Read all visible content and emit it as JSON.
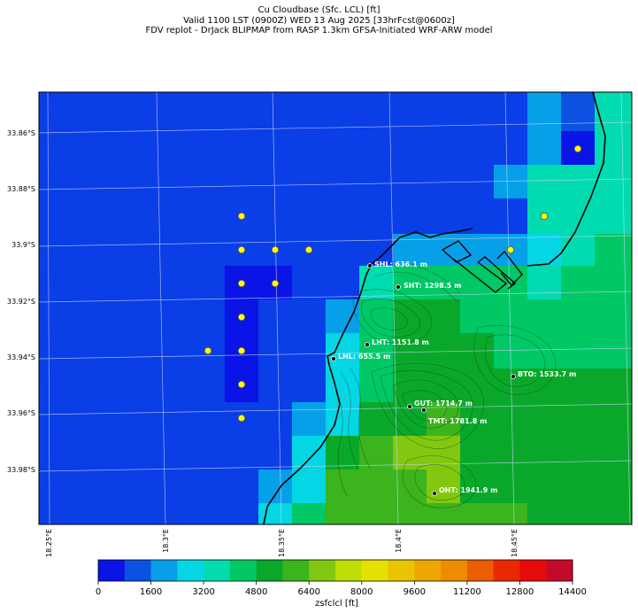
{
  "title": {
    "line1": "Cu Cloudbase (Sfc. LCL) [ft]",
    "line2": "Valid 1100 LST (0900Z) WED 13 Aug 2025 [33hrFcst@0600z]",
    "line3": "FDV replot - DrJack BLIPMAP from RASP 1.3km GFSA-Initiated WRF-ARW model"
  },
  "lat_labels": [
    "33.86°S",
    "33.88°S",
    "33.9°S",
    "33.92°S",
    "33.94°S",
    "33.96°S",
    "33.98°S"
  ],
  "lon_labels": [
    "18.25°E",
    "18.3°E",
    "18.35°E",
    "18.4°E",
    "18.45°E"
  ],
  "sites": [
    {
      "code": "SHL",
      "label": "SHL: 636.1 m"
    },
    {
      "code": "SHT",
      "label": "SHT: 1298.5 m"
    },
    {
      "code": "LHT",
      "label": "LHT: 1151.8 m"
    },
    {
      "code": "LHL",
      "label": "LHL: 655.5 m"
    },
    {
      "code": "BTO",
      "label": "BTO: 1533.7 m"
    },
    {
      "code": "GUT",
      "label": "GUT: 1714.7 m"
    },
    {
      "code": "TMT",
      "label": "TMT: 1781.8 m"
    },
    {
      "code": "OHT",
      "label": "OHT: 1941.9 m"
    }
  ],
  "colorbar": {
    "label": "zsfclcl [ft]",
    "ticks": [
      "0",
      "1600",
      "3200",
      "4800",
      "6400",
      "8000",
      "9600",
      "11200",
      "12800",
      "14400"
    ],
    "colors": [
      "#0a14e6",
      "#0b52e3",
      "#069ee8",
      "#04d6e4",
      "#00dcb0",
      "#00c865",
      "#0aa82a",
      "#3cb41e",
      "#82c810",
      "#bede04",
      "#e6e000",
      "#eac400",
      "#eca800",
      "#ee8c00",
      "#ec5c00",
      "#e82800",
      "#e60a0a",
      "#c40a28"
    ]
  },
  "colors": {
    "ocean": "#0a3ee6",
    "station_marker": "#ffff00",
    "coastline": "#000000"
  }
}
